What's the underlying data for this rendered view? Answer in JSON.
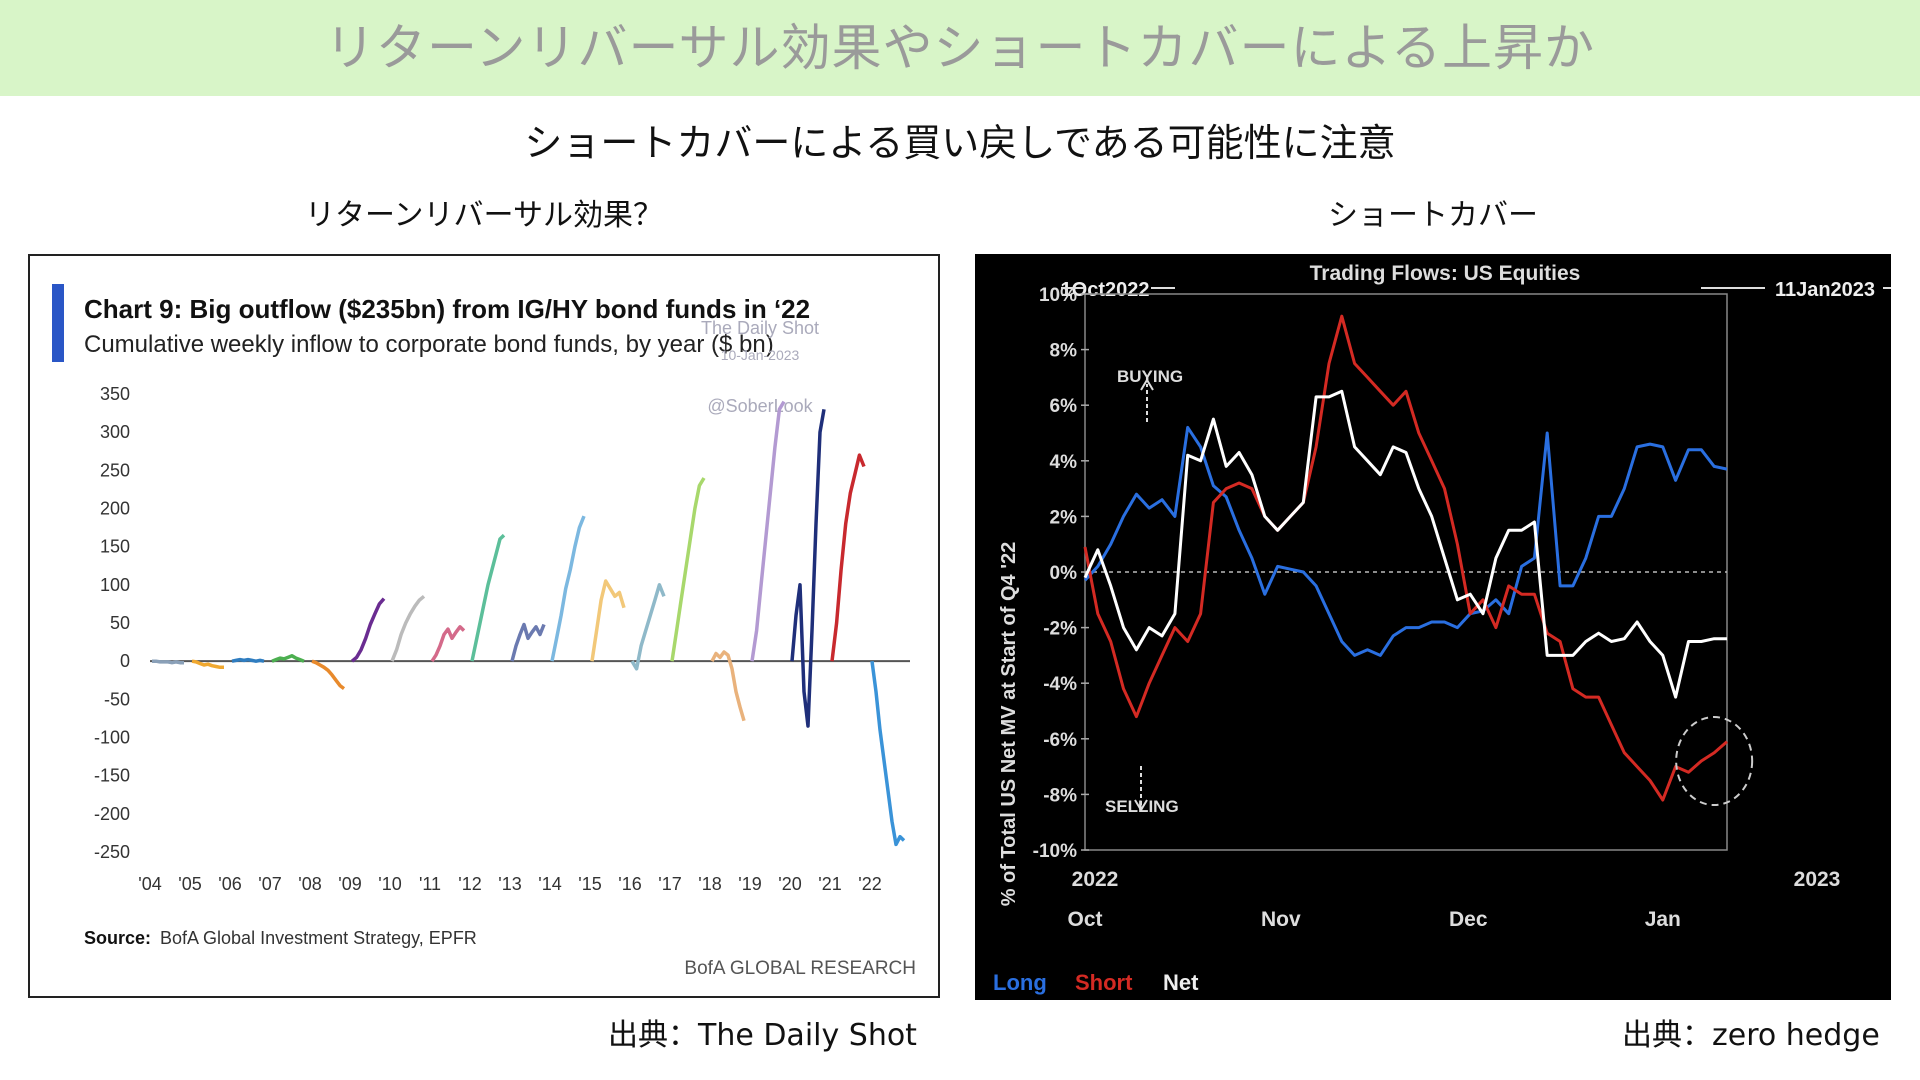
{
  "page": {
    "banner_title": "リターンリバーサル効果やショートカバーによる上昇か",
    "subtitle": "ショートカバーによる買い戻しである可能性に注意",
    "left_label": "リターンリバーサル効果？",
    "right_label": "ショートカバー",
    "left_credit": "出典：The Daily Shot",
    "right_credit": "出典：zero hedge",
    "banner_color": "#d8f5c8"
  },
  "chart_data": [
    {
      "type": "line",
      "title": "Chart 9: Big outflow ($235bn) from IG/HY bond funds in ‘22",
      "subtitle": "Cumulative weekly inflow to corporate bond funds, by year ($ bn)",
      "watermark": [
        "The Daily Shot",
        "10-Jan-2023",
        "@SoberLook"
      ],
      "source_label": "Source:",
      "source": "BofA Global Investment Strategy, EPFR",
      "brand": "BofA GLOBAL RESEARCH",
      "ylim": [
        -250,
        350
      ],
      "yticks": [
        "350",
        "300",
        "250",
        "200",
        "150",
        "100",
        "50",
        "0",
        "-50",
        "-100",
        "-150",
        "-200",
        "-250"
      ],
      "xticks": [
        "'04",
        "'05",
        "'06",
        "'07",
        "'08",
        "'09",
        "'10",
        "'11",
        "'12",
        "'13",
        "'14",
        "'15",
        "'16",
        "'17",
        "'18",
        "'19",
        "'20",
        "'21",
        "'22"
      ],
      "series": [
        {
          "year": "'04",
          "color": "#8aa0b8",
          "values": [
            0,
            0,
            -1,
            -1,
            -1,
            -2,
            -1,
            -2,
            -2
          ]
        },
        {
          "year": "'05",
          "color": "#f0a830",
          "values": [
            0,
            -1,
            -3,
            -5,
            -4,
            -6,
            -7,
            -8,
            -8
          ]
        },
        {
          "year": "'06",
          "color": "#2f7dc0",
          "values": [
            0,
            1,
            2,
            1,
            2,
            1,
            0,
            1,
            0
          ]
        },
        {
          "year": "'07",
          "color": "#4caf50",
          "values": [
            0,
            2,
            4,
            3,
            5,
            7,
            4,
            2,
            0
          ]
        },
        {
          "year": "'08",
          "color": "#e88a2c",
          "values": [
            0,
            -2,
            -5,
            -8,
            -12,
            -18,
            -25,
            -32,
            -36
          ]
        },
        {
          "year": "'09",
          "color": "#6a2c91",
          "values": [
            0,
            5,
            15,
            30,
            48,
            62,
            75,
            82
          ]
        },
        {
          "year": "'10",
          "color": "#bbbbbb",
          "values": [
            0,
            15,
            35,
            50,
            62,
            72,
            80,
            85
          ]
        },
        {
          "year": "'11",
          "color": "#d46a8a",
          "values": [
            0,
            8,
            20,
            35,
            42,
            30,
            38,
            45,
            40
          ]
        },
        {
          "year": "'12",
          "color": "#5cbf9a",
          "values": [
            0,
            25,
            50,
            75,
            100,
            120,
            140,
            160,
            165
          ]
        },
        {
          "year": "'13",
          "color": "#6b7ab0",
          "values": [
            0,
            20,
            35,
            48,
            30,
            38,
            45,
            35,
            48
          ]
        },
        {
          "year": "'14",
          "color": "#7cb8e0",
          "values": [
            0,
            30,
            60,
            95,
            120,
            150,
            175,
            190
          ]
        },
        {
          "year": "'15",
          "color": "#f2c879",
          "values": [
            0,
            40,
            80,
            105,
            95,
            85,
            90,
            70
          ]
        },
        {
          "year": "'16",
          "color": "#8fb9c9",
          "values": [
            0,
            -10,
            20,
            40,
            60,
            80,
            100,
            85
          ]
        },
        {
          "year": "'17",
          "color": "#a8d86c",
          "values": [
            0,
            40,
            80,
            120,
            160,
            200,
            230,
            240
          ]
        },
        {
          "year": "'18",
          "color": "#e9b27c",
          "values": [
            0,
            10,
            5,
            12,
            8,
            -10,
            -40,
            -60,
            -78
          ]
        },
        {
          "year": "'19",
          "color": "#b39ad2",
          "values": [
            0,
            40,
            100,
            160,
            220,
            280,
            330,
            340
          ]
        },
        {
          "year": "'20",
          "color": "#1f2f7a",
          "values": [
            0,
            60,
            100,
            -40,
            -85,
            40,
            180,
            300,
            330
          ]
        },
        {
          "year": "'21",
          "color": "#c8292e",
          "values": [
            0,
            50,
            120,
            180,
            220,
            245,
            270,
            255
          ]
        },
        {
          "year": "'22",
          "color": "#3a93d8",
          "values": [
            0,
            -40,
            -90,
            -130,
            -170,
            -210,
            -240,
            -230,
            -235
          ]
        }
      ]
    },
    {
      "type": "line",
      "title": "Trading Flows: US Equities",
      "start_marker": "1Oct2022",
      "end_marker": "11Jan2023",
      "ylabel": "% of Total US Net MV at Start of Q4 '22",
      "ylim": [
        -10,
        10
      ],
      "yticks": [
        "10%",
        "8%",
        "6%",
        "4%",
        "2%",
        "0%",
        "-2%",
        "-4%",
        "-6%",
        "-8%",
        "-10%"
      ],
      "xticks": [
        "Oct",
        "Nov",
        "Dec",
        "Jan"
      ],
      "year_left": "2022",
      "year_right": "2023",
      "annotations": {
        "buying": "BUYING",
        "selling": "SELLING"
      },
      "x": [
        0,
        2,
        4,
        6,
        8,
        10,
        12,
        14,
        16,
        18,
        20,
        22,
        24,
        26,
        28,
        30,
        32,
        34,
        36,
        38,
        40,
        42,
        44,
        46,
        48,
        50,
        52,
        54,
        56,
        58,
        60,
        62,
        64,
        66,
        68,
        70,
        72,
        74,
        76,
        78,
        80,
        82,
        84,
        86,
        88,
        90,
        92,
        94,
        96,
        98,
        100
      ],
      "series": [
        {
          "name": "Long",
          "color": "#2a6fe0",
          "values": [
            -0.3,
            0.2,
            1.0,
            2.0,
            2.8,
            2.3,
            2.6,
            2.0,
            5.2,
            4.5,
            3.1,
            2.7,
            1.5,
            0.5,
            -0.8,
            0.2,
            0.1,
            0.0,
            -0.5,
            -1.5,
            -2.5,
            -3.0,
            -2.8,
            -3.0,
            -2.3,
            -2.0,
            -2.0,
            -1.8,
            -1.8,
            -2.0,
            -1.5,
            -1.4,
            -1.0,
            -1.5,
            0.2,
            0.5,
            5.0,
            -0.5,
            -0.5,
            0.5,
            2.0,
            2.0,
            3.0,
            4.5,
            4.6,
            4.5,
            3.3,
            4.4,
            4.4,
            3.8,
            3.7
          ]
        },
        {
          "name": "Short",
          "color": "#d42a23",
          "values": [
            0.9,
            -1.5,
            -2.5,
            -4.2,
            -5.2,
            -4.0,
            -3.0,
            -2.0,
            -2.5,
            -1.5,
            2.5,
            3.0,
            3.2,
            3.0,
            2.0,
            1.5,
            2.0,
            2.5,
            4.5,
            7.5,
            9.2,
            7.5,
            7.0,
            6.5,
            6.0,
            6.5,
            5.0,
            4.0,
            3.0,
            1.0,
            -1.5,
            -1.0,
            -2.0,
            -0.5,
            -0.8,
            -0.8,
            -2.2,
            -2.5,
            -4.2,
            -4.5,
            -4.5,
            -5.5,
            -6.5,
            -7.0,
            -7.5,
            -8.2,
            -7.0,
            -7.2,
            -6.8,
            -6.5,
            -6.1
          ]
        },
        {
          "name": "Net",
          "color": "#ffffff",
          "values": [
            -0.2,
            0.8,
            -0.5,
            -2.0,
            -2.8,
            -2.0,
            -2.3,
            -1.5,
            4.2,
            4.0,
            5.5,
            3.8,
            4.3,
            3.5,
            2.0,
            1.5,
            2.0,
            2.5,
            6.3,
            6.3,
            6.5,
            4.5,
            4.0,
            3.5,
            4.5,
            4.3,
            3.0,
            2.0,
            0.5,
            -1.0,
            -0.8,
            -1.5,
            0.5,
            1.5,
            1.5,
            1.8,
            -3.0,
            -3.0,
            -3.0,
            -2.5,
            -2.2,
            -2.5,
            -2.4,
            -1.8,
            -2.5,
            -3.0,
            -4.5,
            -2.5,
            -2.5,
            -2.4,
            -2.4
          ]
        }
      ],
      "legend": [
        "Long",
        "Short",
        "Net"
      ]
    }
  ]
}
